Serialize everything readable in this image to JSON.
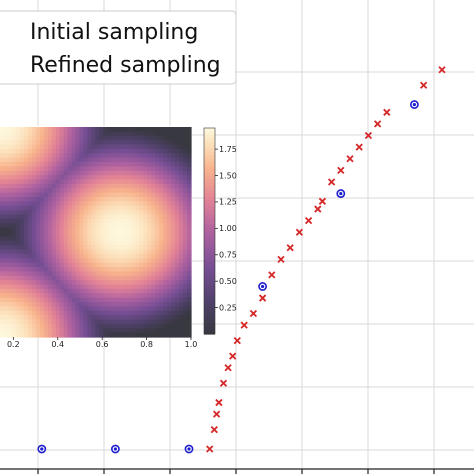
{
  "chart_data": [
    {
      "type": "scatter",
      "grid": true,
      "legend_placement": "top-left",
      "x_ticks": [],
      "y_ticks": [],
      "series": [
        {
          "name": "Initial sampling",
          "marker": "circle",
          "color": "#1f1fd0",
          "points": [
            [
              0.08,
              0.0
            ],
            [
              0.24,
              0.0
            ],
            [
              0.4,
              0.0
            ],
            [
              0.56,
              0.42
            ],
            [
              0.73,
              0.66
            ],
            [
              0.89,
              0.89
            ]
          ]
        },
        {
          "name": "Refined sampling",
          "marker": "x",
          "color": "#d62728",
          "points": [
            [
              0.445,
              0.0
            ],
            [
              0.455,
              0.05
            ],
            [
              0.46,
              0.09
            ],
            [
              0.465,
              0.12
            ],
            [
              0.475,
              0.17
            ],
            [
              0.485,
              0.21
            ],
            [
              0.495,
              0.24
            ],
            [
              0.505,
              0.28
            ],
            [
              0.52,
              0.32
            ],
            [
              0.54,
              0.35
            ],
            [
              0.56,
              0.39
            ],
            [
              0.58,
              0.45
            ],
            [
              0.6,
              0.49
            ],
            [
              0.62,
              0.52
            ],
            [
              0.64,
              0.56
            ],
            [
              0.66,
              0.59
            ],
            [
              0.68,
              0.62
            ],
            [
              0.69,
              0.64
            ],
            [
              0.71,
              0.69
            ],
            [
              0.73,
              0.72
            ],
            [
              0.75,
              0.75
            ],
            [
              0.77,
              0.78
            ],
            [
              0.79,
              0.81
            ],
            [
              0.81,
              0.84
            ],
            [
              0.83,
              0.87
            ],
            [
              0.91,
              0.94
            ],
            [
              0.95,
              0.98
            ]
          ]
        }
      ]
    },
    {
      "type": "heatmap",
      "description_values": "cos-like interference pattern",
      "x_ticks": [
        "0.2",
        "0.4",
        "0.6",
        "0.8",
        "1.0"
      ],
      "x_tick_values": [
        0.2,
        0.4,
        0.6,
        0.8,
        1.0
      ],
      "x_range": [
        0.14,
        1.0
      ],
      "colorbar": {
        "ticks": [
          "0.25",
          "0.50",
          "0.75",
          "1.00",
          "1.25",
          "1.50",
          "1.75"
        ],
        "tick_values": [
          0.25,
          0.5,
          0.75,
          1.0,
          1.25,
          1.5,
          1.75
        ],
        "range": [
          0.0,
          1.95
        ],
        "colormap": "magma-light"
      },
      "peaks": [
        [
          0.14,
          1.0
        ],
        [
          0.68,
          0.5
        ],
        [
          0.14,
          0.0
        ]
      ]
    }
  ]
}
